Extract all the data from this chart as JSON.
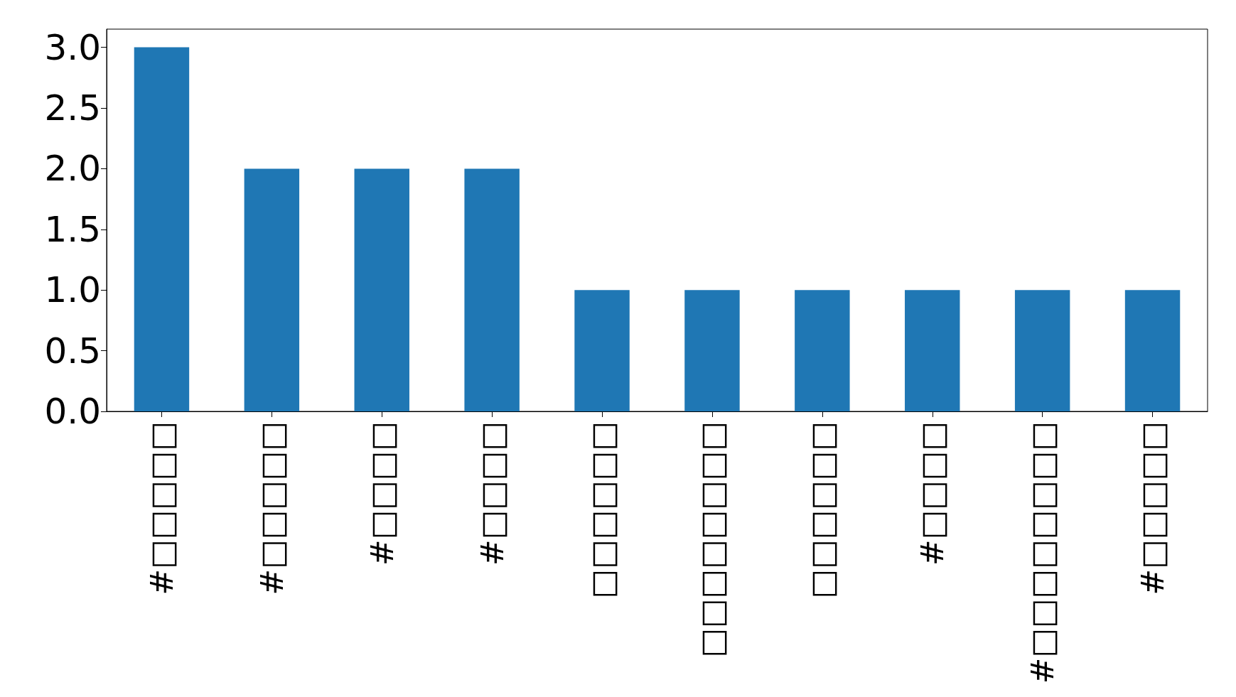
{
  "chart_data": {
    "type": "bar",
    "categories": [
      "#□□□□□",
      "#□□□□□",
      "#□□□□",
      "#□□□□",
      "□□□□□□",
      "□□□□□□□□",
      "□□□□□□",
      "#□□□□",
      "#□□□□□□□□",
      "#□□□□□"
    ],
    "values": [
      3,
      2,
      2,
      2,
      1,
      1,
      1,
      1,
      1,
      1
    ],
    "color": "#1f77b4",
    "ylim": [
      0,
      3.15
    ],
    "yticks": [
      {
        "value": 0,
        "label": "0.0"
      },
      {
        "value": 0.5,
        "label": "0.5"
      },
      {
        "value": 1,
        "label": "1.0"
      },
      {
        "value": 1.5,
        "label": "1.5"
      },
      {
        "value": 2,
        "label": "2.0"
      },
      {
        "value": 2.5,
        "label": "2.5"
      },
      {
        "value": 3,
        "label": "3.0"
      }
    ],
    "grid": false
  }
}
